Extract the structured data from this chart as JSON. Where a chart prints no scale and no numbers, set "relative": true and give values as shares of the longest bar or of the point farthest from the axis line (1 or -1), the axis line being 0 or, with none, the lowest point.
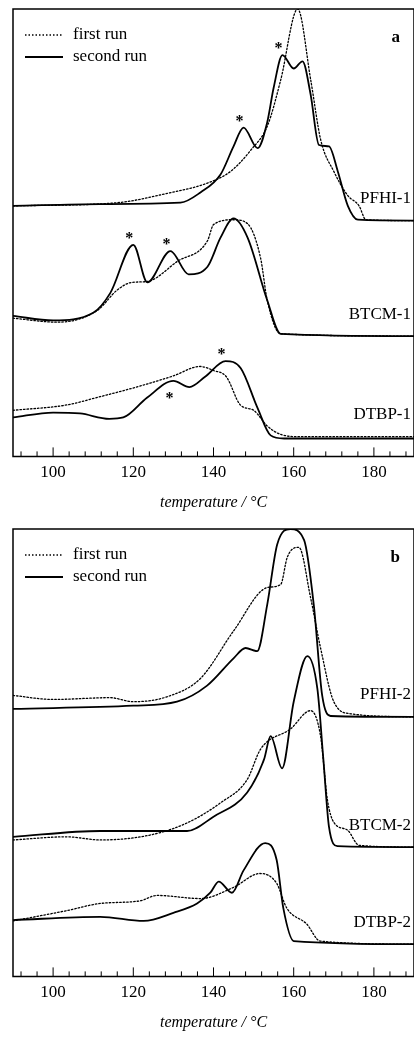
{
  "chart_data": [
    {
      "type": "line",
      "title": "a",
      "xlabel": "temperature / °C",
      "relative": true,
      "legend": "top left",
      "xlim": [
        90,
        190
      ],
      "xticks": [
        {
          "value": 92,
          "label": null
        },
        {
          "value": 96,
          "label": null
        },
        100,
        {
          "value": 104,
          "label": null
        },
        {
          "value": 108,
          "label": null
        },
        {
          "value": 112,
          "label": null
        },
        {
          "value": 116,
          "label": null
        },
        120,
        {
          "value": 124,
          "label": null
        },
        {
          "value": 128,
          "label": null
        },
        {
          "value": 132,
          "label": null
        },
        {
          "value": 136,
          "label": null
        },
        140,
        {
          "value": 144,
          "label": null
        },
        {
          "value": 148,
          "label": null
        },
        {
          "value": 152,
          "label": null
        },
        {
          "value": 156,
          "label": null
        },
        160,
        {
          "value": 164,
          "label": null
        },
        {
          "value": 168,
          "label": null
        },
        {
          "value": 172,
          "label": null
        },
        {
          "value": 176,
          "label": null
        },
        180,
        {
          "value": 184,
          "label": null
        },
        {
          "value": 188,
          "label": null
        }
      ],
      "series": [
        {
          "name": "first run",
          "color": "#000000",
          "line_style": "dotted",
          "x": [
            90,
            116,
            128.5,
            138.5,
            144.25,
            149.25,
            153.5,
            156.75,
            161,
            164.25,
            166.75,
            170,
            173.5,
            176.3,
            178,
            190
          ],
          "values": [
            0.56,
            0.567,
            0.588,
            0.611,
            0.637,
            0.684,
            0.74,
            0.841,
            1.0,
            0.841,
            0.707,
            0.637,
            0.583,
            0.56,
            0.529,
            0.527
          ]
        },
        {
          "name": "second run",
          "color": "#000000",
          "line_style": "solid",
          "x": [
            90,
            111.75,
            131.75,
            136.75,
            141.75,
            145,
            147.5,
            151,
            153.4,
            155,
            157.2,
            160,
            162.2,
            164.2,
            166.3,
            168.8,
            171,
            173.5,
            176,
            190
          ],
          "values": [
            0.56,
            0.564,
            0.567,
            0.59,
            0.63,
            0.693,
            0.735,
            0.689,
            0.747,
            0.824,
            0.897,
            0.867,
            0.883,
            0.81,
            0.696,
            0.693,
            0.637,
            0.56,
            0.529,
            0.527
          ]
        },
        {
          "color": "#000000",
          "line_style": "dotted",
          "x": [
            90,
            101,
            111,
            116,
            119.7,
            123.5,
            131,
            138.5,
            140,
            145,
            148.5,
            151.75,
            153.4,
            156.75,
            190
          ],
          "values": [
            0.309,
            0.3,
            0.326,
            0.372,
            0.389,
            0.391,
            0.436,
            0.482,
            0.518,
            0.529,
            0.52,
            0.443,
            0.349,
            0.274,
            0.269
          ]
        },
        {
          "color": "#000000",
          "line_style": "solid",
          "x": [
            90,
            100,
            110,
            114.25,
            120,
            123.5,
            129.25,
            133.8,
            138.5,
            141.75,
            145,
            148.5,
            153.4,
            156.75,
            190
          ],
          "values": [
            0.314,
            0.304,
            0.321,
            0.365,
            0.473,
            0.389,
            0.459,
            0.407,
            0.424,
            0.489,
            0.532,
            0.489,
            0.349,
            0.274,
            0.269
          ]
        },
        {
          "color": "#000000",
          "line_style": "dotted",
          "x": [
            90,
            103.4,
            111.5,
            121.6,
            130,
            136.6,
            140,
            143.2,
            146.7,
            150,
            153.4,
            156.8,
            161.8,
            190
          ],
          "values": [
            0.103,
            0.115,
            0.133,
            0.157,
            0.18,
            0.201,
            0.192,
            0.178,
            0.115,
            0.103,
            0.068,
            0.049,
            0.044,
            0.044
          ]
        },
        {
          "color": "#000000",
          "line_style": "solid",
          "x": [
            90,
            100,
            106.7,
            114,
            117.5,
            123.4,
            130,
            134,
            137.9,
            143,
            146.8,
            151,
            154.25,
            157.6,
            190
          ],
          "values": [
            0.087,
            0.098,
            0.096,
            0.084,
            0.087,
            0.131,
            0.169,
            0.155,
            0.178,
            0.213,
            0.197,
            0.108,
            0.047,
            0.04,
            0.04
          ]
        }
      ],
      "annotations": [
        "PFHI-1",
        "BTCM-1",
        "DTBP-1",
        {
          "text": "*",
          "x": 147.5,
          "y": 0.735
        },
        {
          "text": "*",
          "x": 157.2,
          "y": 0.897
        },
        {
          "text": "*",
          "x": 120,
          "y": 0.473
        },
        {
          "text": "*",
          "x": 129.25,
          "y": 0.459
        },
        {
          "text": "*",
          "x": 143,
          "y": 0.213
        },
        {
          "text": "*",
          "x": 130,
          "y": 0.169
        }
      ]
    },
    {
      "type": "line",
      "title": "b",
      "xlabel": "temperature / °C",
      "relative": true,
      "legend": "top left",
      "xlim": [
        90,
        190
      ],
      "xticks": [
        {
          "value": 92,
          "label": null
        },
        {
          "value": 96,
          "label": null
        },
        100,
        {
          "value": 104,
          "label": null
        },
        {
          "value": 108,
          "label": null
        },
        {
          "value": 112,
          "label": null
        },
        {
          "value": 116,
          "label": null
        },
        120,
        {
          "value": 124,
          "label": null
        },
        {
          "value": 128,
          "label": null
        },
        {
          "value": 132,
          "label": null
        },
        {
          "value": 136,
          "label": null
        },
        140,
        {
          "value": 144,
          "label": null
        },
        {
          "value": 148,
          "label": null
        },
        {
          "value": 152,
          "label": null
        },
        {
          "value": 156,
          "label": null
        },
        160,
        {
          "value": 164,
          "label": null
        },
        {
          "value": 168,
          "label": null
        },
        {
          "value": 172,
          "label": null
        },
        {
          "value": 176,
          "label": null
        },
        180,
        {
          "value": 184,
          "label": null
        },
        {
          "value": 188,
          "label": null
        }
      ],
      "series": [
        {
          "name": "first run",
          "color": "#000000",
          "line_style": "dotted",
          "x": [
            90,
            100,
            114.2,
            120,
            128.4,
            136.75,
            145,
            153.4,
            156.75,
            158.4,
            161.3,
            164.2,
            166.7,
            170,
            174.2,
            190
          ],
          "values": [
            0.628,
            0.619,
            0.623,
            0.614,
            0.625,
            0.666,
            0.772,
            0.869,
            0.876,
            0.937,
            0.959,
            0.847,
            0.734,
            0.614,
            0.587,
            0.58
          ]
        },
        {
          "name": "second run",
          "color": "#000000",
          "line_style": "solid",
          "x": [
            90,
            120,
            130.9,
            138.4,
            145,
            148,
            150.9,
            153.4,
            155.9,
            159.2,
            162.6,
            165,
            167.1,
            169.2,
            190
          ],
          "values": [
            0.598,
            0.605,
            0.614,
            0.65,
            0.711,
            0.734,
            0.727,
            0.831,
            0.966,
            1.0,
            0.975,
            0.831,
            0.628,
            0.582,
            0.58
          ]
        },
        {
          "color": "#000000",
          "line_style": "dotted",
          "x": [
            90,
            103.4,
            111.75,
            124.2,
            133.4,
            141.75,
            148.4,
            151.75,
            159.2,
            164.2,
            166.7,
            168.4,
            170.1,
            173.4,
            176.3,
            190
          ],
          "values": [
            0.305,
            0.312,
            0.305,
            0.316,
            0.343,
            0.388,
            0.44,
            0.508,
            0.553,
            0.594,
            0.537,
            0.395,
            0.343,
            0.327,
            0.293,
            0.289
          ]
        },
        {
          "color": "#000000",
          "line_style": "solid",
          "x": [
            90,
            111.75,
            133.4,
            140,
            148.4,
            152.6,
            154.25,
            157.1,
            160,
            163.4,
            165.9,
            167.4,
            168.8,
            170.9,
            190
          ],
          "values": [
            0.312,
            0.325,
            0.325,
            0.357,
            0.411,
            0.485,
            0.537,
            0.465,
            0.614,
            0.716,
            0.643,
            0.485,
            0.334,
            0.291,
            0.289
          ]
        },
        {
          "color": "#000000",
          "line_style": "dotted",
          "x": [
            90,
            103.4,
            111.75,
            121.75,
            125.9,
            136.75,
            145,
            151.6,
            155.75,
            158.25,
            163.25,
            166.6,
            190
          ],
          "values": [
            0.124,
            0.147,
            0.163,
            0.169,
            0.181,
            0.174,
            0.199,
            0.23,
            0.208,
            0.153,
            0.117,
            0.079,
            0.072
          ]
        },
        {
          "color": "#000000",
          "line_style": "solid",
          "x": [
            90,
            111.75,
            122.6,
            130,
            135.9,
            139.2,
            141.3,
            144.6,
            147.5,
            152.9,
            155.75,
            157.4,
            160,
            190
          ],
          "values": [
            0.126,
            0.133,
            0.124,
            0.142,
            0.163,
            0.187,
            0.212,
            0.187,
            0.237,
            0.298,
            0.26,
            0.153,
            0.079,
            0.072
          ]
        }
      ],
      "annotations": [
        "PFHI-2",
        "BTCM-2",
        "DTBP-2"
      ]
    }
  ]
}
